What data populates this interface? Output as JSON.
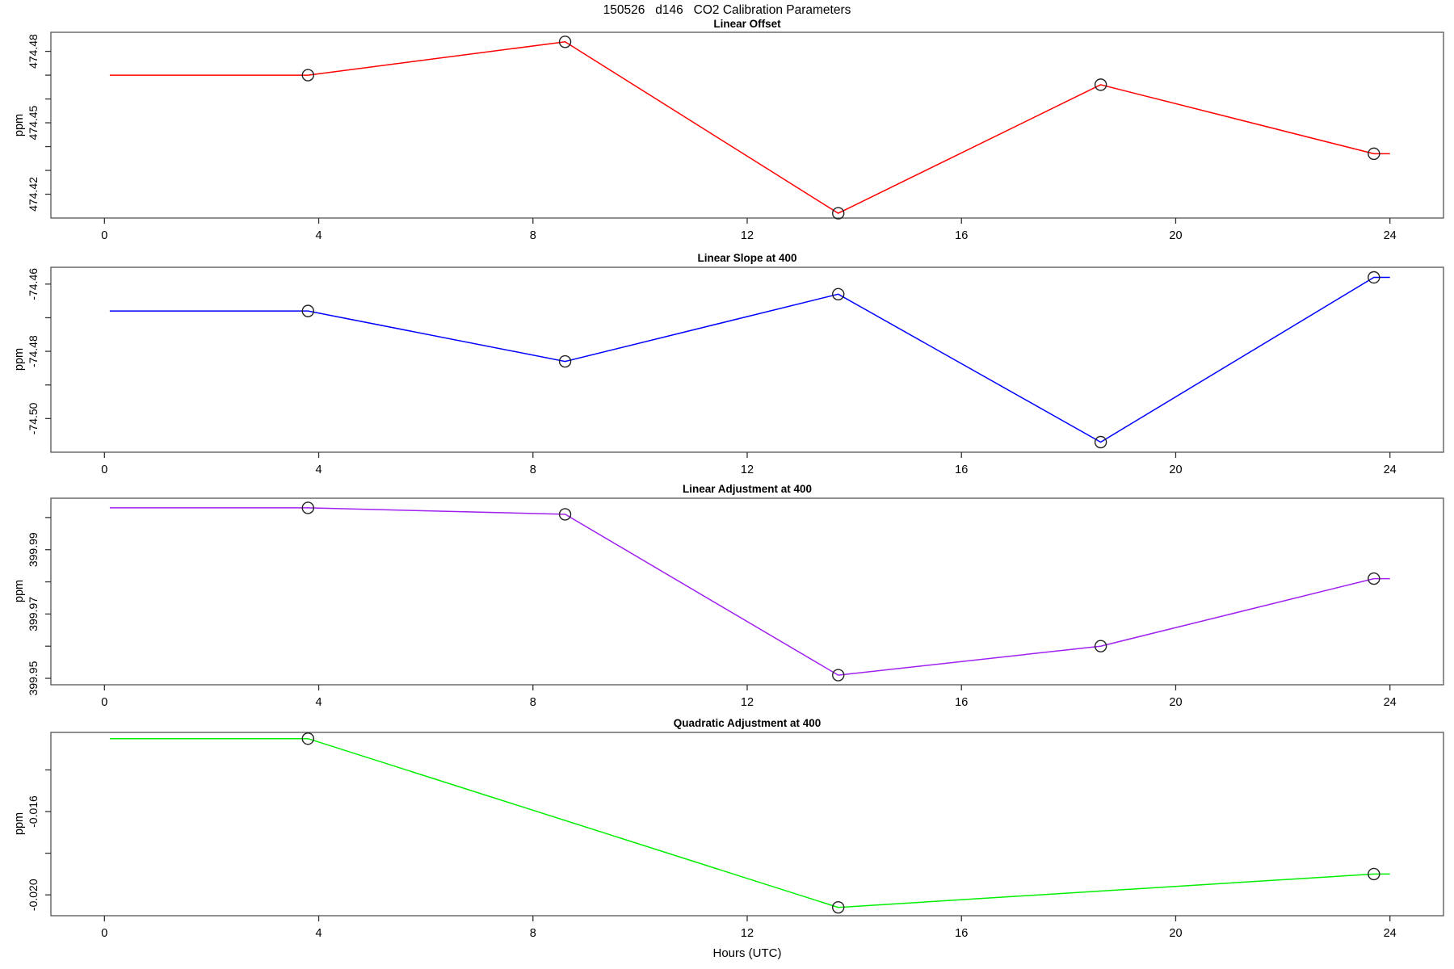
{
  "figure": {
    "main_title": "150526   d146   CO2 Calibration Parameters",
    "x_axis_label": "Hours (UTC)",
    "background_color": "#FFFFFF",
    "axis_color": "#555555",
    "marker_color": "#222222"
  },
  "chart_data": [
    {
      "type": "line",
      "title": "Linear Offset",
      "ylabel": "ppm",
      "color": "#FF0000",
      "xlim": [
        -1,
        25
      ],
      "ylim": [
        474.41,
        474.488
      ],
      "x": [
        0.1,
        3.8,
        8.6,
        13.7,
        18.6,
        23.7,
        24.0
      ],
      "y": [
        474.47,
        474.47,
        474.484,
        474.412,
        474.466,
        474.437,
        474.437
      ],
      "markers": [
        false,
        true,
        true,
        true,
        true,
        true,
        false
      ],
      "xticks": [
        0,
        4,
        8,
        12,
        16,
        20,
        24
      ],
      "xtick_labels": [
        "0",
        "4",
        "8",
        "12",
        "16",
        "20",
        "24"
      ],
      "yticks": [
        474.42,
        474.43,
        474.44,
        474.45,
        474.46,
        474.47,
        474.48
      ],
      "ytick_labels": [
        "474.42",
        "",
        "",
        "474.45",
        "",
        "",
        "474.48"
      ],
      "grid": false,
      "legend": "none"
    },
    {
      "type": "line",
      "title": "Linear Slope at 400",
      "ylabel": "ppm",
      "color": "#0000FF",
      "xlim": [
        -1,
        25
      ],
      "ylim": [
        -74.51,
        -74.455
      ],
      "x": [
        0.1,
        3.8,
        8.6,
        13.7,
        18.6,
        23.7,
        24.0
      ],
      "y": [
        -74.468,
        -74.468,
        -74.483,
        -74.463,
        -74.507,
        -74.458,
        -74.458
      ],
      "markers": [
        false,
        true,
        true,
        true,
        true,
        true,
        false
      ],
      "xticks": [
        0,
        4,
        8,
        12,
        16,
        20,
        24
      ],
      "xtick_labels": [
        "0",
        "4",
        "8",
        "12",
        "16",
        "20",
        "24"
      ],
      "yticks": [
        -74.5,
        -74.49,
        -74.48,
        -74.47,
        -74.46
      ],
      "ytick_labels": [
        "-74.50",
        "",
        "-74.48",
        "",
        "-74.46"
      ],
      "grid": false,
      "legend": "none"
    },
    {
      "type": "line",
      "title": "Linear Adjustment at 400",
      "ylabel": "ppm",
      "color": "#A020F0",
      "xlim": [
        -1,
        25
      ],
      "ylim": [
        399.948,
        400.006
      ],
      "x": [
        0.1,
        3.8,
        8.6,
        13.7,
        18.6,
        23.7,
        24.0
      ],
      "y": [
        400.003,
        400.003,
        400.001,
        399.951,
        399.96,
        399.981,
        399.981
      ],
      "markers": [
        false,
        true,
        true,
        true,
        true,
        true,
        false
      ],
      "xticks": [
        0,
        4,
        8,
        12,
        16,
        20,
        24
      ],
      "xtick_labels": [
        "0",
        "4",
        "8",
        "12",
        "16",
        "20",
        "24"
      ],
      "yticks": [
        399.95,
        399.96,
        399.97,
        399.98,
        399.99,
        400.0
      ],
      "ytick_labels": [
        "399.95",
        "",
        "399.97",
        "",
        "399.99",
        ""
      ],
      "grid": false,
      "legend": "none"
    },
    {
      "type": "line",
      "title": "Quadratic Adjustment at 400",
      "ylabel": "ppm",
      "color": "#00EE00",
      "xlim": [
        -1,
        25
      ],
      "ylim": [
        -0.021,
        -0.0122
      ],
      "x": [
        0.1,
        3.8,
        13.7,
        23.7,
        24.0
      ],
      "y": [
        -0.0125,
        -0.0125,
        -0.0206,
        -0.019,
        -0.019
      ],
      "markers": [
        false,
        true,
        true,
        true,
        false
      ],
      "xticks": [
        0,
        4,
        8,
        12,
        16,
        20,
        24
      ],
      "xtick_labels": [
        "0",
        "4",
        "8",
        "12",
        "16",
        "20",
        "24"
      ],
      "yticks": [
        -0.02,
        -0.018,
        -0.016,
        -0.014
      ],
      "ytick_labels": [
        "-0.020",
        "",
        "-0.016",
        ""
      ],
      "grid": false,
      "legend": "none"
    }
  ]
}
